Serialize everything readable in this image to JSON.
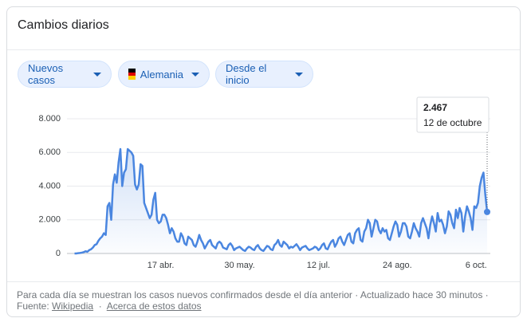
{
  "header": {
    "title": "Cambios diarios"
  },
  "filters": [
    {
      "label": "Nuevos casos"
    },
    {
      "label": "Alemania"
    },
    {
      "label": "Desde el inicio"
    }
  ],
  "chart_data": {
    "type": "line",
    "color": "#4a86e0",
    "grid": true,
    "ylim": [
      0,
      8000
    ],
    "yticks": [
      0,
      {
        "value": 2000,
        "label": "2.000"
      },
      {
        "value": 4000,
        "label": "4.000"
      },
      {
        "value": 6000,
        "label": "6.000"
      },
      {
        "value": 8000,
        "label": "8.000"
      }
    ],
    "tooltip": {
      "label": "2.467",
      "date": "12 de octubre"
    },
    "categories": [
      null,
      null,
      null,
      null,
      null,
      null,
      null,
      null,
      null,
      null,
      null,
      null,
      null,
      null,
      null,
      null,
      null,
      null,
      null,
      null,
      null,
      null,
      null,
      null,
      null,
      null,
      null,
      null,
      null,
      null,
      null,
      null,
      null,
      null,
      null,
      null,
      null,
      null,
      null,
      null,
      null,
      null,
      null,
      null,
      null,
      null,
      null,
      "17 abr.",
      null,
      null,
      null,
      null,
      null,
      null,
      null,
      null,
      null,
      null,
      null,
      null,
      null,
      null,
      null,
      null,
      null,
      null,
      null,
      null,
      null,
      null,
      null,
      null,
      null,
      null,
      null,
      null,
      null,
      null,
      null,
      null,
      null,
      null,
      null,
      null,
      null,
      null,
      null,
      null,
      null,
      null,
      "30 may.",
      null,
      null,
      null,
      null,
      null,
      null,
      null,
      null,
      null,
      null,
      null,
      null,
      null,
      null,
      null,
      null,
      null,
      null,
      null,
      null,
      null,
      null,
      null,
      null,
      null,
      null,
      null,
      null,
      null,
      null,
      null,
      null,
      null,
      null,
      null,
      null,
      null,
      null,
      null,
      null,
      null,
      null,
      "12 jul.",
      null,
      null,
      null,
      null,
      null,
      null,
      null,
      null,
      null,
      null,
      null,
      null,
      null,
      null,
      null,
      null,
      null,
      null,
      null,
      null,
      null,
      null,
      null,
      null,
      null,
      null,
      null,
      null,
      null,
      null,
      null,
      null,
      null,
      null,
      null,
      null,
      null,
      null,
      null,
      null,
      null,
      null,
      "24 ago.",
      null,
      null,
      null,
      null,
      null,
      null,
      null,
      null,
      null,
      null,
      null,
      null,
      null,
      null,
      null,
      null,
      null,
      null,
      null,
      null,
      null,
      null,
      null,
      null,
      null,
      null,
      null,
      null,
      null,
      null,
      null,
      null,
      null,
      null,
      null,
      null,
      null,
      null,
      null,
      null,
      null,
      null,
      "6 oct.",
      null,
      null,
      null,
      null,
      null,
      null
    ],
    "values": [
      0,
      0,
      20,
      30,
      50,
      80,
      130,
      100,
      200,
      250,
      350,
      500,
      550,
      750,
      900,
      1000,
      1200,
      1100,
      2800,
      3000,
      2000,
      4100,
      4700,
      4200,
      5400,
      6200,
      4000,
      4800,
      5000,
      6200,
      6100,
      6000,
      5800,
      4100,
      3800,
      4100,
      5300,
      5200,
      3000,
      2700,
      2400,
      2100,
      2300,
      3200,
      3600,
      2000,
      1800,
      1900,
      2300,
      2300,
      2100,
      1700,
      1200,
      1500,
      1300,
      900,
      700,
      700,
      1200,
      1000,
      600,
      500,
      1000,
      900,
      800,
      500,
      400,
      700,
      1100,
      800,
      600,
      300,
      500,
      700,
      800,
      500,
      400,
      300,
      600,
      700,
      600,
      350,
      300,
      250,
      500,
      600,
      450,
      200,
      300,
      350,
      400,
      300,
      200,
      150,
      300,
      400,
      350,
      250,
      200,
      400,
      500,
      300,
      200,
      150,
      300,
      450,
      400,
      250,
      200,
      500,
      600,
      800,
      500,
      400,
      700,
      600,
      500,
      300,
      400,
      350,
      450,
      550,
      400,
      200,
      350,
      400,
      450,
      300,
      200,
      250,
      300,
      400,
      350,
      200,
      300,
      500,
      600,
      300,
      250,
      500,
      700,
      800,
      400,
      600,
      900,
      1000,
      700,
      500,
      800,
      1100,
      1200,
      700,
      600,
      1200,
      1400,
      1500,
      800,
      700,
      1300,
      1500,
      2000,
      1800,
      1000,
      1500,
      2000,
      1900,
      1400,
      1200,
      1500,
      1300,
      1400,
      900,
      800,
      1200,
      1600,
      1900,
      1700,
      1000,
      1300,
      1800,
      1800,
      1600,
      1000,
      900,
      1300,
      1800,
      1500,
      1300,
      1000,
      1800,
      2100,
      1800,
      1500,
      900,
      1700,
      2200,
      1800,
      1300,
      2400,
      1900,
      2000,
      1700,
      1200,
      1600,
      2500,
      2300,
      1800,
      1500,
      2600,
      2100,
      2700,
      2400,
      1300,
      2200,
      2800,
      2500,
      2100,
      1400,
      2800,
      2700,
      3000,
      4000,
      4500,
      4800,
      3500,
      2467
    ]
  },
  "footer": {
    "note": "Para cada día se muestran los casos nuevos confirmados desde el día anterior · Actualizado hace 30 minutos ·",
    "source_label": "Fuente:",
    "source_link": "Wikipedia",
    "separator": "·",
    "about_link": "Acerca de estos datos"
  }
}
